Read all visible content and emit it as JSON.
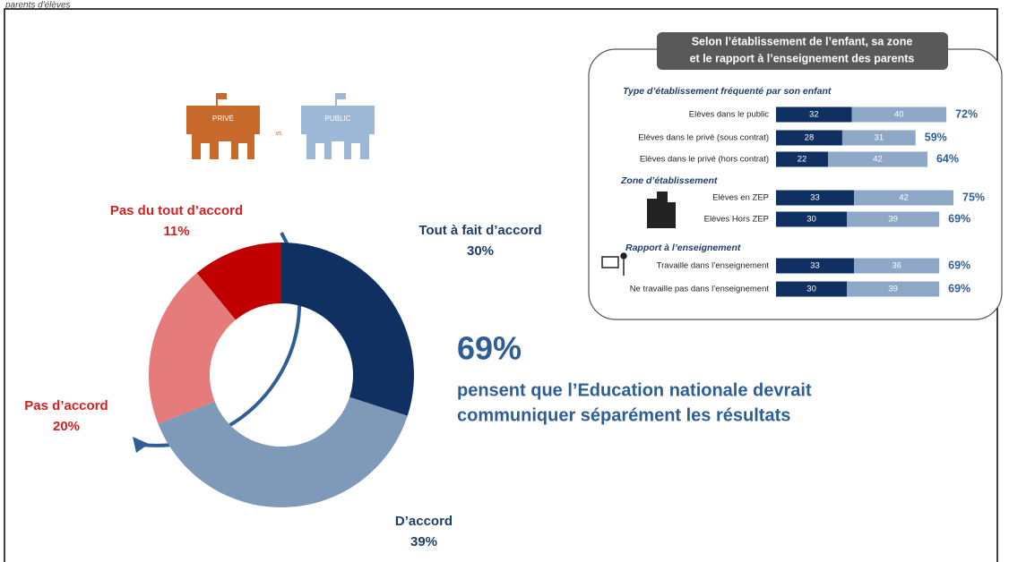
{
  "header_fragment": "parents d'élèves",
  "icons": {
    "left": "PRIVÉ",
    "vs": "vs",
    "right": "PUBLIC"
  },
  "callout": {
    "headline": "69%",
    "lines": [
      "pensent que l’Education nationale devrait",
      "communiquer séparément les résultats"
    ]
  },
  "chart_data": [
    {
      "type": "donut",
      "categories": [
        "Tout à fait d’accord",
        "D’accord",
        "Pas d’accord",
        "Pas du tout d’accord"
      ],
      "values": [
        30,
        39,
        20,
        11
      ],
      "value_labels": [
        "30%",
        "39%",
        "20%",
        "11%"
      ],
      "colors": [
        "#0f3060",
        "#7f9ab8",
        "#e57b7b",
        "#c00000"
      ],
      "label_colors": [
        "#1f3d6b",
        "#1f3d6b",
        "#d42020",
        "#d42020"
      ]
    },
    {
      "type": "stacked-hbar",
      "title_lines": [
        "Selon l’établissement de l’enfant, sa zone",
        "et le rapport à l’enseignement des parents"
      ],
      "groups": [
        {
          "title": "Type d’établissement fréquenté par son enfant",
          "rows": [
            0,
            1,
            2
          ]
        },
        {
          "title": "Zone d’établissement",
          "rows": [
            3,
            4
          ]
        },
        {
          "title": "Rapport à l’enseignement",
          "rows": [
            5,
            6
          ]
        }
      ],
      "categories": [
        "Elèves dans le public",
        "Elèves dans le privé (sous contrat)",
        "Elèves dans le privé (hors contrat)",
        "Elèves en ZEP",
        "Elèves Hors ZEP",
        "Travaille dans l’enseignement",
        "Ne travaille pas dans l’enseignement"
      ],
      "series": [
        {
          "color": "#0f3060",
          "values": [
            32,
            28,
            22,
            33,
            30,
            33,
            30
          ]
        },
        {
          "color": "#8ea7c6",
          "values": [
            40,
            31,
            42,
            42,
            39,
            36,
            39
          ]
        }
      ],
      "totals": [
        72,
        59,
        64,
        75,
        69,
        69,
        69
      ],
      "total_labels": [
        "72%",
        "59%",
        "64%",
        "75%",
        "69%",
        "69%",
        "69%"
      ]
    }
  ]
}
